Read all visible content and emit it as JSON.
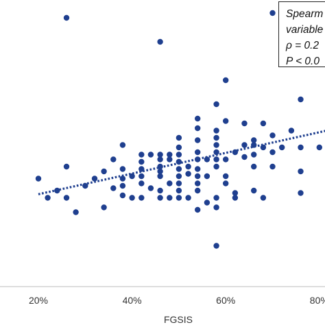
{
  "chart_data": {
    "type": "scatter",
    "xlabel": "FGSIS",
    "ylabel": "",
    "title": "",
    "xlim": [
      0.14,
      0.85
    ],
    "ylim": [
      0,
      12
    ],
    "x_ticks": [
      0.2,
      0.4,
      0.6,
      0.8
    ],
    "x_tick_labels": [
      "20%",
      "40%",
      "60%",
      "80%"
    ],
    "grid": false,
    "point_color": "#1f3f8f",
    "trend_color": "#1f3f8f",
    "annotation_lines": [
      "Spearm",
      "variable",
      "ρ = 0.2",
      "P < 0.0"
    ],
    "trendline": {
      "style": "dotted",
      "x": [
        0.2,
        0.85
      ],
      "y": [
        3.85,
        6.65
      ]
    },
    "series": [
      {
        "points": [
          [
            0.2,
            4.5
          ],
          [
            0.22,
            3.7
          ],
          [
            0.24,
            4.0
          ],
          [
            0.26,
            3.7
          ],
          [
            0.26,
            5.0
          ],
          [
            0.26,
            11.2
          ],
          [
            0.28,
            3.1
          ],
          [
            0.3,
            4.2
          ],
          [
            0.32,
            4.5
          ],
          [
            0.34,
            4.8
          ],
          [
            0.34,
            3.3
          ],
          [
            0.36,
            5.3
          ],
          [
            0.36,
            4.1
          ],
          [
            0.38,
            3.8
          ],
          [
            0.38,
            4.2
          ],
          [
            0.38,
            4.5
          ],
          [
            0.38,
            4.9
          ],
          [
            0.38,
            5.9
          ],
          [
            0.4,
            3.7
          ],
          [
            0.4,
            4.6
          ],
          [
            0.42,
            3.7
          ],
          [
            0.42,
            4.3
          ],
          [
            0.42,
            4.6
          ],
          [
            0.42,
            4.9
          ],
          [
            0.42,
            5.2
          ],
          [
            0.42,
            5.5
          ],
          [
            0.44,
            4.1
          ],
          [
            0.44,
            5.5
          ],
          [
            0.46,
            3.7
          ],
          [
            0.46,
            4.0
          ],
          [
            0.46,
            4.6
          ],
          [
            0.46,
            4.8
          ],
          [
            0.46,
            5.0
          ],
          [
            0.46,
            5.3
          ],
          [
            0.46,
            5.5
          ],
          [
            0.46,
            10.2
          ],
          [
            0.48,
            3.7
          ],
          [
            0.48,
            4.3
          ],
          [
            0.48,
            5.3
          ],
          [
            0.48,
            5.5
          ],
          [
            0.5,
            3.7
          ],
          [
            0.5,
            4.0
          ],
          [
            0.5,
            4.3
          ],
          [
            0.5,
            4.6
          ],
          [
            0.5,
            4.9
          ],
          [
            0.5,
            5.2
          ],
          [
            0.5,
            5.5
          ],
          [
            0.5,
            5.8
          ],
          [
            0.5,
            6.2
          ],
          [
            0.52,
            5.0
          ],
          [
            0.52,
            4.7
          ],
          [
            0.52,
            3.7
          ],
          [
            0.54,
            4.0
          ],
          [
            0.54,
            4.3
          ],
          [
            0.54,
            4.6
          ],
          [
            0.54,
            4.9
          ],
          [
            0.54,
            5.3
          ],
          [
            0.54,
            5.6
          ],
          [
            0.54,
            6.1
          ],
          [
            0.54,
            6.6
          ],
          [
            0.54,
            7.0
          ],
          [
            0.54,
            3.2
          ],
          [
            0.56,
            5.3
          ],
          [
            0.56,
            4.6
          ],
          [
            0.56,
            3.5
          ],
          [
            0.58,
            3.7
          ],
          [
            0.58,
            5.0
          ],
          [
            0.58,
            5.3
          ],
          [
            0.58,
            5.6
          ],
          [
            0.58,
            5.9
          ],
          [
            0.58,
            6.2
          ],
          [
            0.58,
            6.5
          ],
          [
            0.58,
            7.6
          ],
          [
            0.58,
            3.3
          ],
          [
            0.58,
            1.7
          ],
          [
            0.6,
            4.3
          ],
          [
            0.6,
            4.6
          ],
          [
            0.6,
            5.3
          ],
          [
            0.6,
            6.9
          ],
          [
            0.6,
            8.6
          ],
          [
            0.62,
            5.6
          ],
          [
            0.62,
            3.9
          ],
          [
            0.62,
            3.7
          ],
          [
            0.64,
            5.4
          ],
          [
            0.64,
            5.9
          ],
          [
            0.64,
            6.8
          ],
          [
            0.66,
            6.1
          ],
          [
            0.66,
            5.9
          ],
          [
            0.66,
            5.5
          ],
          [
            0.66,
            5.0
          ],
          [
            0.66,
            4.0
          ],
          [
            0.68,
            3.7
          ],
          [
            0.68,
            5.8
          ],
          [
            0.68,
            6.8
          ],
          [
            0.7,
            6.3
          ],
          [
            0.7,
            5.6
          ],
          [
            0.7,
            5.0
          ],
          [
            0.7,
            11.4
          ],
          [
            0.72,
            5.8
          ],
          [
            0.74,
            6.5
          ],
          [
            0.76,
            3.9
          ],
          [
            0.76,
            4.8
          ],
          [
            0.76,
            5.8
          ],
          [
            0.76,
            7.8
          ],
          [
            0.8,
            5.8
          ],
          [
            0.82,
            4.2
          ],
          [
            0.82,
            7.1
          ],
          [
            0.85,
            6.9
          ],
          [
            0.85,
            8.5
          ]
        ]
      }
    ]
  }
}
